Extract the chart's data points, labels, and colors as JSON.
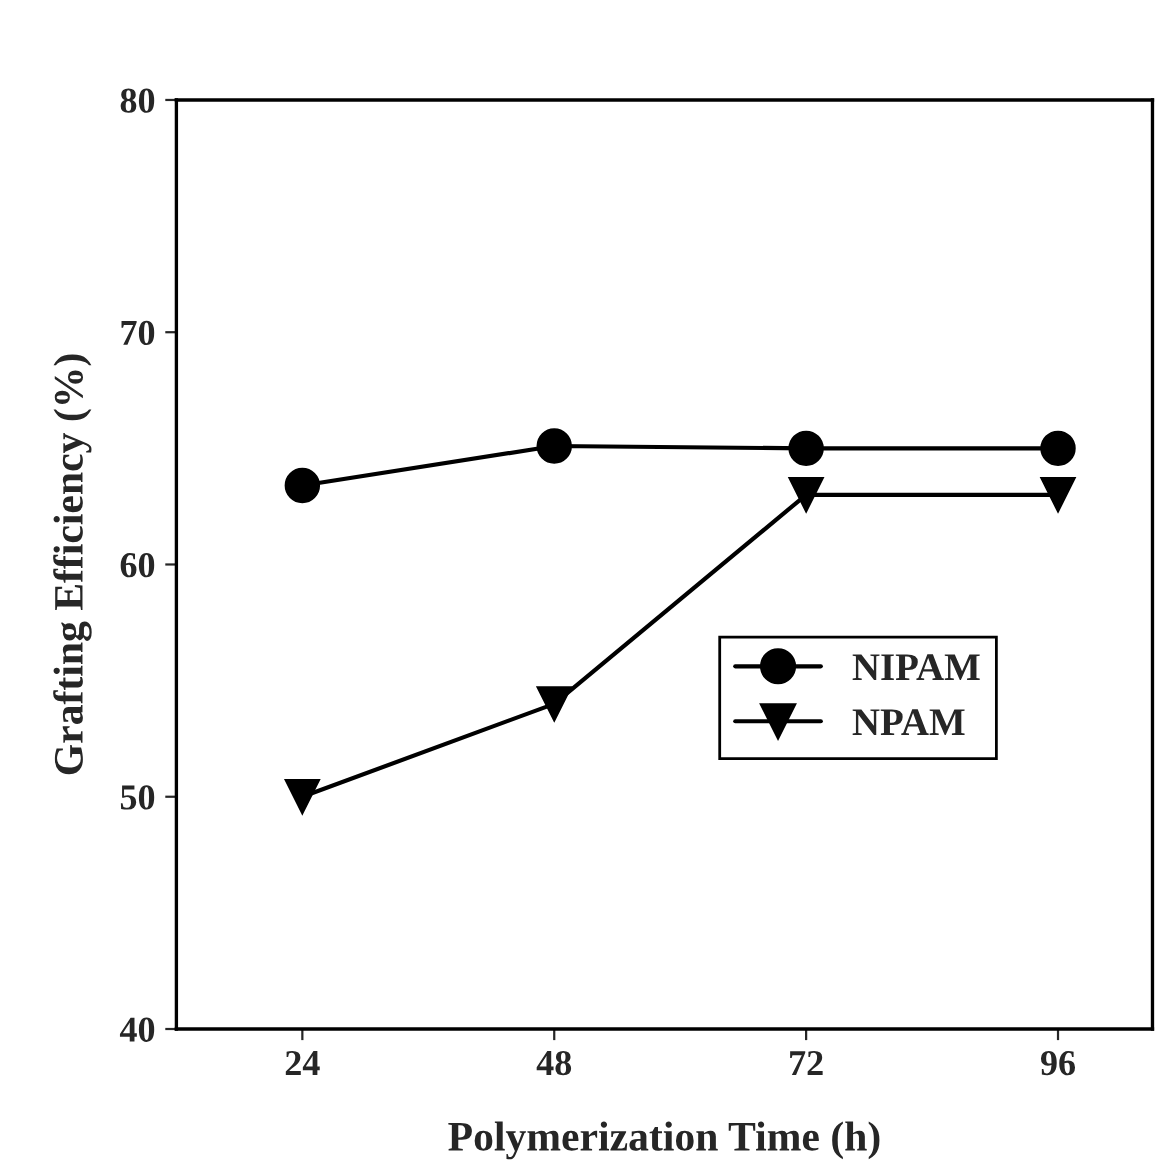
{
  "chart_data": {
    "type": "line",
    "xlabel": "Polymerization Time (h)",
    "ylabel": "Grafting Efficiency (%)",
    "x": [
      24,
      48,
      72,
      96
    ],
    "series": [
      {
        "name": "NIPAM",
        "color": "#000000",
        "marker": "circle",
        "values": [
          63.4,
          65.1,
          65.0,
          65.0
        ]
      },
      {
        "name": "NPAM",
        "color": "#000000",
        "marker": "triangle",
        "values": [
          50,
          54,
          63,
          63
        ]
      }
    ],
    "xlim": [
      12,
      105
    ],
    "xticks": [
      24,
      48,
      72,
      96
    ],
    "ylim": [
      40,
      80
    ],
    "yticks": [
      40,
      50,
      60,
      70,
      80
    ],
    "grid": false,
    "legend": "bottom right",
    "line_style": "solid"
  }
}
